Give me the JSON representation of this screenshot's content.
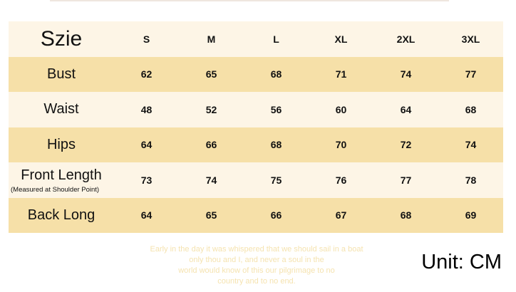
{
  "table": {
    "header_label": "Szie",
    "sizes": [
      "S",
      "M",
      "L",
      "XL",
      "2XL",
      "3XL"
    ],
    "rows": [
      {
        "label": "Bust",
        "values": [
          "62",
          "65",
          "68",
          "71",
          "74",
          "77"
        ]
      },
      {
        "label": "Waist",
        "values": [
          "48",
          "52",
          "56",
          "60",
          "64",
          "68"
        ]
      },
      {
        "label": "Hips",
        "values": [
          "64",
          "66",
          "68",
          "70",
          "72",
          "74"
        ]
      },
      {
        "label": "Front Length",
        "note": "(Measured at Shoulder Point)",
        "values": [
          "73",
          "74",
          "75",
          "76",
          "77",
          "78"
        ]
      },
      {
        "label": "Back Long",
        "values": [
          "64",
          "65",
          "66",
          "67",
          "68",
          "69"
        ]
      }
    ]
  },
  "watermark_text": [
    "Early in the day it was whispered that we should sail in a boat",
    "only thou and I, and never a soul in the",
    "world would know of this our pilgrimage to no",
    "country and to no end."
  ],
  "unit": "Unit: CM",
  "colors": {
    "light_row": "#fdf5e6",
    "dark_row": "#f6e0a8",
    "watermark": "#f5e3b0"
  }
}
